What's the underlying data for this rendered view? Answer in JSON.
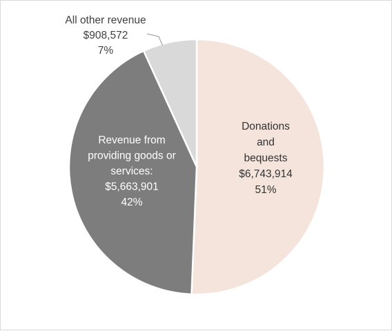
{
  "chart_data": {
    "type": "pie",
    "title": "",
    "legend": "none",
    "start_angle_deg": 0,
    "direction": "clockwise",
    "slices": [
      {
        "name": "Donations and bequests",
        "label_lines": [
          "Donations",
          "and",
          "bequests"
        ],
        "value": 6743914,
        "value_label": "$6,743,914",
        "percent_label": "51%",
        "color": "#f4e4dc",
        "text_color": "#333333"
      },
      {
        "name": "Revenue from providing goods or services:",
        "label_lines": [
          "Revenue from",
          "providing goods or",
          "services:"
        ],
        "value": 5663901,
        "value_label": "$5,663,901",
        "percent_label": "42%",
        "color": "#7d7d7d",
        "text_color": "#ffffff"
      },
      {
        "name": "All other revenue",
        "label_lines": [
          "All other revenue"
        ],
        "value": 908572,
        "value_label": "$908,572",
        "percent_label": "7%",
        "color": "#d9d9d9",
        "text_color": "#404040"
      }
    ]
  }
}
